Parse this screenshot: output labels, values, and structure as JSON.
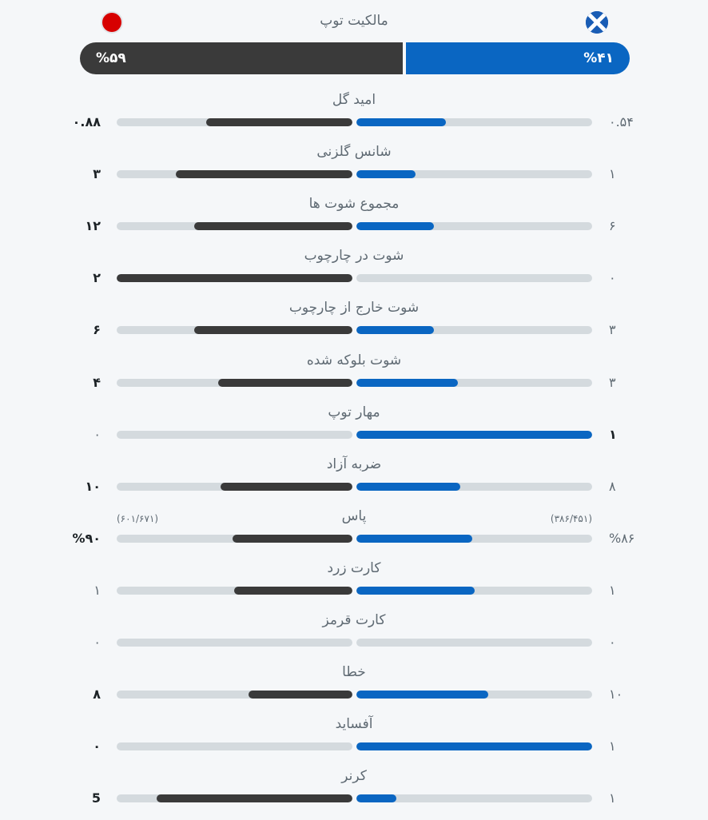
{
  "possession": {
    "title": "مالکیت توپ",
    "home_pct_label": "%۵۹",
    "away_pct_label": "%۴۱",
    "home_pct": 59,
    "away_pct": 41,
    "home_flag_icon": "red-circle-flag-icon",
    "away_flag_icon": "scotland-flag-icon"
  },
  "colors": {
    "home": "#3a3a3a",
    "away": "#0a66c2",
    "track": "#d4dade",
    "background": "#f5f7f9"
  },
  "stats": [
    {
      "key": "xg",
      "label": "امید گل",
      "home": "۰.۸۸",
      "away": "۰.۵۴",
      "home_fill": 0.62,
      "away_fill": 0.38,
      "home_bold": true,
      "away_bold": false
    },
    {
      "key": "big-chances",
      "label": "شانس گلزنی",
      "home": "۳",
      "away": "۱",
      "home_fill": 0.75,
      "away_fill": 0.25,
      "home_bold": true,
      "away_bold": false
    },
    {
      "key": "total-shots",
      "label": "مجموع شوت ها",
      "home": "۱۲",
      "away": "۶",
      "home_fill": 0.67,
      "away_fill": 0.33,
      "home_bold": true,
      "away_bold": false
    },
    {
      "key": "shots-on-target",
      "label": "شوت در چارچوب",
      "home": "۲",
      "away": "۰",
      "home_fill": 1,
      "away_fill": 0,
      "home_bold": true,
      "away_bold": false
    },
    {
      "key": "shots-off-target",
      "label": "شوت خارج از چارچوب",
      "home": "۶",
      "away": "۳",
      "home_fill": 0.67,
      "away_fill": 0.33,
      "home_bold": true,
      "away_bold": false
    },
    {
      "key": "blocked-shots",
      "label": "شوت بلوکه شده",
      "home": "۴",
      "away": "۳",
      "home_fill": 0.57,
      "away_fill": 0.43,
      "home_bold": true,
      "away_bold": false
    },
    {
      "key": "saves",
      "label": "مهار توپ",
      "home": "۰",
      "away": "۱",
      "home_fill": 0,
      "away_fill": 1,
      "home_bold": false,
      "away_bold": true
    },
    {
      "key": "free-kicks",
      "label": "ضربه آزاد",
      "home": "۱۰",
      "away": "۸",
      "home_fill": 0.56,
      "away_fill": 0.44,
      "home_bold": true,
      "away_bold": false
    },
    {
      "key": "passes",
      "label": "پاس",
      "home": "%۹۰",
      "away": "%۸۶",
      "home_sub": "(۶۰۱/۶۷۱)",
      "away_sub": "(۳۸۶/۴۵۱)",
      "home_fill": 0.51,
      "away_fill": 0.49,
      "home_bold": true,
      "away_bold": false
    },
    {
      "key": "yellow-cards",
      "label": "کارت زرد",
      "home": "۱",
      "away": "۱",
      "home_fill": 0.5,
      "away_fill": 0.5,
      "home_bold": false,
      "away_bold": false
    },
    {
      "key": "red-cards",
      "label": "کارت قرمز",
      "home": "۰",
      "away": "۰",
      "home_fill": 0,
      "away_fill": 0,
      "home_bold": false,
      "away_bold": false
    },
    {
      "key": "fouls",
      "label": "خطا",
      "home": "۸",
      "away": "۱۰",
      "home_fill": 0.44,
      "away_fill": 0.56,
      "home_bold": true,
      "away_bold": false
    },
    {
      "key": "offsides",
      "label": "آفساید",
      "home": "۰",
      "away": "۱",
      "home_fill": 0,
      "away_fill": 1,
      "home_bold": true,
      "away_bold": false
    },
    {
      "key": "corners",
      "label": "کرنر",
      "home": "5",
      "away": "۱",
      "home_fill": 0.83,
      "away_fill": 0.17,
      "home_bold": true,
      "away_bold": false
    }
  ]
}
